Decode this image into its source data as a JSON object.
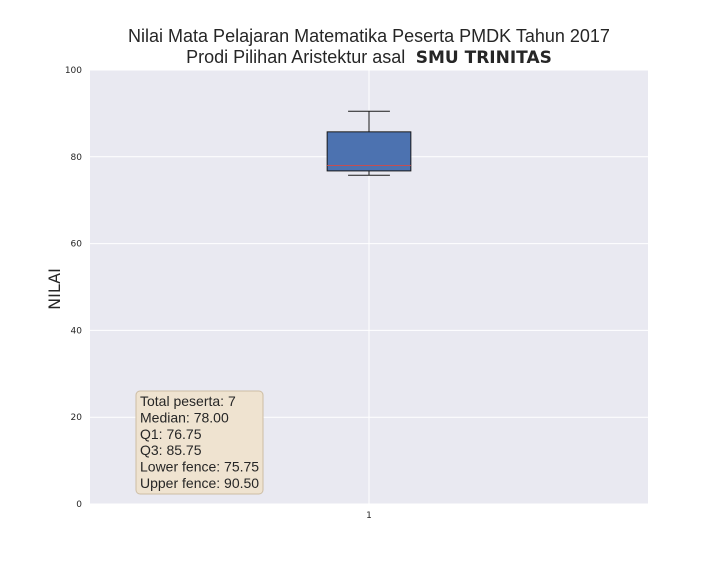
{
  "colors": {
    "plot_bg": "#e9e9f1",
    "grid": "#ffffff",
    "box_fill": "#4c72b0",
    "box_edge": "#1a1a1a",
    "median": "#c44e52",
    "whisker": "#1a1a1a",
    "statbox_bg": "#efe3d0",
    "statbox_edge": "#cdbda4"
  },
  "chart_data": {
    "type": "box",
    "title_line1": "Nilai Mata Pelajaran Matematika Peserta PMDK Tahun 2017",
    "title_line2_prefix": "Prodi Pilihan Aristektur asal",
    "title_line2_bold": "SMU TRINITAS",
    "xlabel": "",
    "ylabel": "NILAI",
    "ylim": [
      0,
      100
    ],
    "yticks": [
      0,
      20,
      40,
      60,
      80,
      100
    ],
    "categories": [
      "1"
    ],
    "grid": true,
    "boxes": [
      {
        "category": "1",
        "whisker_low": 75.75,
        "q1": 76.75,
        "median": 78.0,
        "q3": 85.75,
        "whisker_high": 90.5
      }
    ],
    "stats_text": [
      "Total peserta: 7",
      "Median: 78.00",
      "Q1: 76.75",
      "Q3: 85.75",
      "Lower fence: 75.75",
      "Upper fence: 90.50"
    ]
  }
}
